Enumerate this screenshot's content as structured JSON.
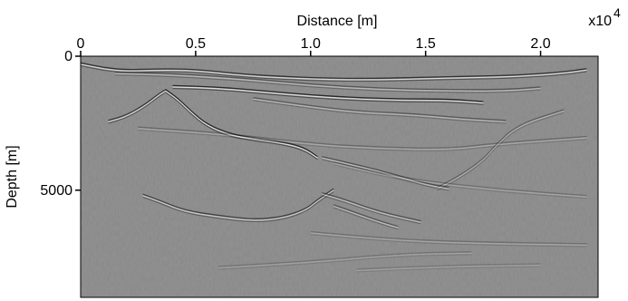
{
  "chart_data": {
    "type": "heatmap",
    "title": "",
    "xlabel": "Distance [m]",
    "ylabel": "Depth [m]",
    "x_axis_position": "top",
    "x_multiplier_label": "x10",
    "x_multiplier_exponent": "4",
    "xlim": [
      0,
      2.25
    ],
    "ylim": [
      0,
      9000
    ],
    "y_reversed": true,
    "x_ticks": [
      {
        "value": 0,
        "label": "0"
      },
      {
        "value": 0.5,
        "label": "0.5"
      },
      {
        "value": 1.0,
        "label": "1.0"
      },
      {
        "value": 1.5,
        "label": "1.5"
      },
      {
        "value": 2.0,
        "label": "2.0"
      }
    ],
    "y_ticks": [
      {
        "value": 0,
        "label": "0"
      },
      {
        "value": 5000,
        "label": "5000"
      }
    ],
    "colormap": "gray",
    "background_color": "#828282",
    "reflectors": [
      {
        "name": "seafloor",
        "points": [
          [
            0.0,
            300
          ],
          [
            0.1,
            480
          ],
          [
            0.2,
            560
          ],
          [
            0.35,
            520
          ],
          [
            0.5,
            540
          ],
          [
            0.7,
            720
          ],
          [
            0.9,
            820
          ],
          [
            1.1,
            880
          ],
          [
            1.3,
            880
          ],
          [
            1.5,
            840
          ],
          [
            1.7,
            800
          ],
          [
            1.9,
            760
          ],
          [
            2.1,
            640
          ],
          [
            2.2,
            520
          ]
        ],
        "strength": 0.9
      },
      {
        "name": "shallow-1",
        "points": [
          [
            0.15,
            650
          ],
          [
            0.4,
            700
          ],
          [
            0.7,
            860
          ],
          [
            1.0,
            1100
          ],
          [
            1.3,
            1250
          ],
          [
            1.6,
            1300
          ],
          [
            1.85,
            1300
          ],
          [
            2.0,
            1200
          ]
        ],
        "strength": 0.55
      },
      {
        "name": "bright-layer",
        "points": [
          [
            0.4,
            1150
          ],
          [
            0.6,
            1200
          ],
          [
            0.8,
            1350
          ],
          [
            1.0,
            1500
          ],
          [
            1.2,
            1600
          ],
          [
            1.4,
            1650
          ],
          [
            1.6,
            1650
          ],
          [
            1.75,
            1750
          ]
        ],
        "strength": 1.0
      },
      {
        "name": "salt-top-left",
        "points": [
          [
            0.12,
            2450
          ],
          [
            0.2,
            2250
          ],
          [
            0.28,
            1850
          ],
          [
            0.34,
            1450
          ],
          [
            0.37,
            1300
          ]
        ],
        "strength": 0.85
      },
      {
        "name": "salt-top-right",
        "points": [
          [
            0.37,
            1300
          ],
          [
            0.42,
            1600
          ],
          [
            0.48,
            2100
          ],
          [
            0.55,
            2600
          ],
          [
            0.65,
            2950
          ],
          [
            0.75,
            3100
          ],
          [
            0.88,
            3250
          ],
          [
            0.97,
            3450
          ],
          [
            1.03,
            3800
          ]
        ],
        "strength": 1.0
      },
      {
        "name": "mid-1",
        "points": [
          [
            0.75,
            1600
          ],
          [
            1.0,
            1900
          ],
          [
            1.2,
            2100
          ],
          [
            1.45,
            2200
          ],
          [
            1.65,
            2350
          ],
          [
            1.85,
            2450
          ]
        ],
        "strength": 0.5
      },
      {
        "name": "mid-2",
        "points": [
          [
            0.25,
            2700
          ],
          [
            0.6,
            2900
          ],
          [
            1.0,
            3300
          ],
          [
            1.3,
            3450
          ],
          [
            1.6,
            3500
          ],
          [
            1.8,
            3300
          ],
          [
            2.2,
            3050
          ]
        ],
        "strength": 0.35
      },
      {
        "name": "fault",
        "points": [
          [
            1.55,
            4950
          ],
          [
            1.65,
            4500
          ],
          [
            1.75,
            3900
          ],
          [
            1.8,
            3400
          ],
          [
            1.9,
            2600
          ],
          [
            2.1,
            2050
          ]
        ],
        "strength": 0.45
      },
      {
        "name": "deep-1",
        "points": [
          [
            1.05,
            3800
          ],
          [
            1.3,
            4300
          ],
          [
            1.5,
            4800
          ],
          [
            1.6,
            4950
          ]
        ],
        "strength": 0.6
      },
      {
        "name": "deep-2",
        "points": [
          [
            1.1,
            4000
          ],
          [
            1.4,
            4600
          ],
          [
            1.8,
            5000
          ],
          [
            2.2,
            5250
          ]
        ],
        "strength": 0.3
      },
      {
        "name": "base-salt",
        "points": [
          [
            0.27,
            5200
          ],
          [
            0.35,
            5450
          ],
          [
            0.45,
            5800
          ],
          [
            0.6,
            6000
          ],
          [
            0.75,
            6150
          ],
          [
            0.88,
            6050
          ],
          [
            0.98,
            5750
          ],
          [
            1.03,
            5400
          ],
          [
            1.1,
            5000
          ]
        ],
        "strength": 0.75
      },
      {
        "name": "sub-salt-1",
        "points": [
          [
            1.05,
            5150
          ],
          [
            1.15,
            5400
          ],
          [
            1.3,
            5850
          ],
          [
            1.48,
            6200
          ]
        ],
        "strength": 0.6
      },
      {
        "name": "sub-salt-2",
        "points": [
          [
            1.1,
            5600
          ],
          [
            1.2,
            5900
          ],
          [
            1.3,
            6200
          ],
          [
            1.38,
            6400
          ]
        ],
        "strength": 0.55
      },
      {
        "name": "deep-3",
        "points": [
          [
            1.0,
            6600
          ],
          [
            1.4,
            6900
          ],
          [
            1.8,
            7000
          ],
          [
            2.2,
            7050
          ]
        ],
        "strength": 0.3
      },
      {
        "name": "deep-4",
        "points": [
          [
            0.6,
            7900
          ],
          [
            1.0,
            7700
          ],
          [
            1.4,
            7400
          ],
          [
            1.7,
            7350
          ]
        ],
        "strength": 0.25
      },
      {
        "name": "deep-5",
        "points": [
          [
            1.2,
            8000
          ],
          [
            1.6,
            7850
          ],
          [
            2.0,
            7800
          ]
        ],
        "strength": 0.22
      }
    ],
    "grid": false,
    "legend": "none"
  }
}
